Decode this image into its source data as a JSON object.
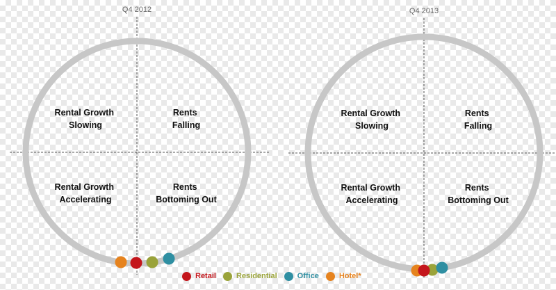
{
  "colors": {
    "ring": "#c7c7c7",
    "axis": "#555555",
    "retail": "#c4161c",
    "residential": "#9aa33a",
    "office": "#2f8fa2",
    "hotel": "#e6831e"
  },
  "clocks": [
    {
      "period": "Q4 2012",
      "quadrants": {
        "top_left": [
          "Rental Growth",
          "Slowing"
        ],
        "top_right": [
          "Rents",
          "Falling"
        ],
        "bottom_left": [
          "Rental Growth",
          "Accelerating"
        ],
        "bottom_right": [
          "Rents",
          "Bottoming Out"
        ]
      }
    },
    {
      "period": "Q4 2013",
      "quadrants": {
        "top_left": [
          "Rental Growth",
          "Slowing"
        ],
        "top_right": [
          "Rents",
          "Falling"
        ],
        "bottom_left": [
          "Rental Growth",
          "Accelerating"
        ],
        "bottom_right": [
          "Rents",
          "Bottoming Out"
        ]
      }
    }
  ],
  "legend": [
    {
      "label": "Retail",
      "color": "#c4161c"
    },
    {
      "label": "Residential",
      "color": "#9aa33a"
    },
    {
      "label": "Office",
      "color": "#2f8fa2"
    },
    {
      "label": "Hotel*",
      "color": "#e6831e"
    }
  ]
}
